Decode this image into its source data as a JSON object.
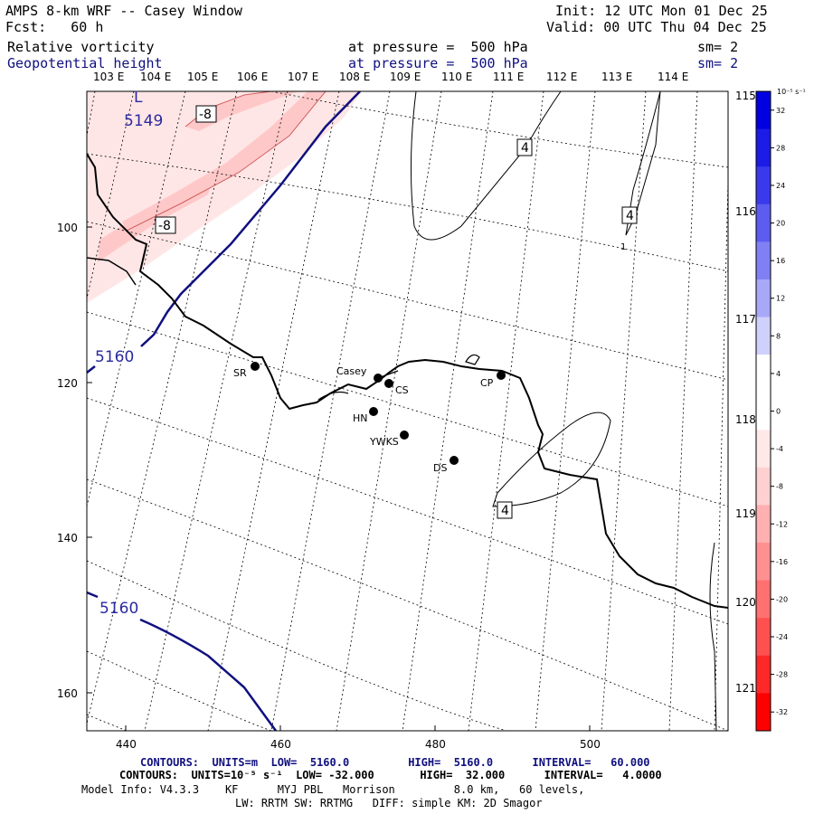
{
  "header": {
    "title": "AMPS 8-km WRF -- Casey Window",
    "forecast": "Fcst:   60 h",
    "init": "Init: 12 UTC Mon 01 Dec 25",
    "valid": "Valid: 00 UTC Thu 04 Dec 25",
    "field1": "Relative vorticity",
    "field2": "Geopotential height",
    "pressure1": "at pressure =  500 hPa",
    "pressure2": "at pressure =  500 hPa",
    "smooth1": "sm= 2",
    "smooth2": "sm= 2"
  },
  "map": {
    "top_lon_labels": [
      "103 E",
      "104 E",
      "105 E",
      "106 E",
      "107 E",
      "108 E",
      "109 E",
      "110 E",
      "111 E",
      "112 E",
      "113 E",
      "114 E"
    ],
    "right_lon_labels": [
      "115 E",
      "116 E",
      "117 E",
      "118 E",
      "119 E",
      "120 E",
      "121 E"
    ],
    "x_ticks": [
      "440",
      "460",
      "480",
      "500"
    ],
    "y_ticks": [
      "100",
      "120",
      "140",
      "160"
    ],
    "stations": [
      {
        "name": "SR"
      },
      {
        "name": "Casey"
      },
      {
        "name": "CS"
      },
      {
        "name": "HN"
      },
      {
        "name": "YWKS"
      },
      {
        "name": "CP"
      },
      {
        "name": "DS"
      }
    ],
    "low_label": "L",
    "low_value": "5149",
    "height_labels": [
      "5160",
      "5160"
    ],
    "vort_labels": [
      "-8",
      "-8",
      "4",
      "4",
      "4"
    ],
    "stray_label": "1"
  },
  "colorbar": {
    "unit": "10⁻⁵ s⁻¹",
    "ticks": [
      "32",
      "28",
      "24",
      "20",
      "16",
      "12",
      "8",
      "4",
      "0",
      "-4",
      "-8",
      "-12",
      "-16",
      "-20",
      "-24",
      "-28",
      "-32"
    ],
    "colors": [
      "#0000e0",
      "#1c1ce6",
      "#3a3aec",
      "#5c5cf0",
      "#8080f4",
      "#a8a8f8",
      "#d0d0fc",
      "#ffffff",
      "#ffffff",
      "#ffe8e8",
      "#ffd0d0",
      "#ffb0b0",
      "#ff9090",
      "#ff7070",
      "#ff5050",
      "#ff2828",
      "#ff0000"
    ]
  },
  "footer": {
    "line1": "CONTOURS:  UNITS=m  LOW=  5160.0         HIGH=  5160.0      INTERVAL=   60.000",
    "line2": "CONTOURS:  UNITS=10⁻⁵ s⁻¹  LOW= -32.000       HIGH=  32.000      INTERVAL=   4.0000",
    "line3": "Model Info: V4.3.3    KF      MYJ PBL   Morrison         8.0 km,   60 levels,",
    "line4": "LW: RRTM SW: RRTMG   DIFF: simple KM: 2D Smagor"
  }
}
